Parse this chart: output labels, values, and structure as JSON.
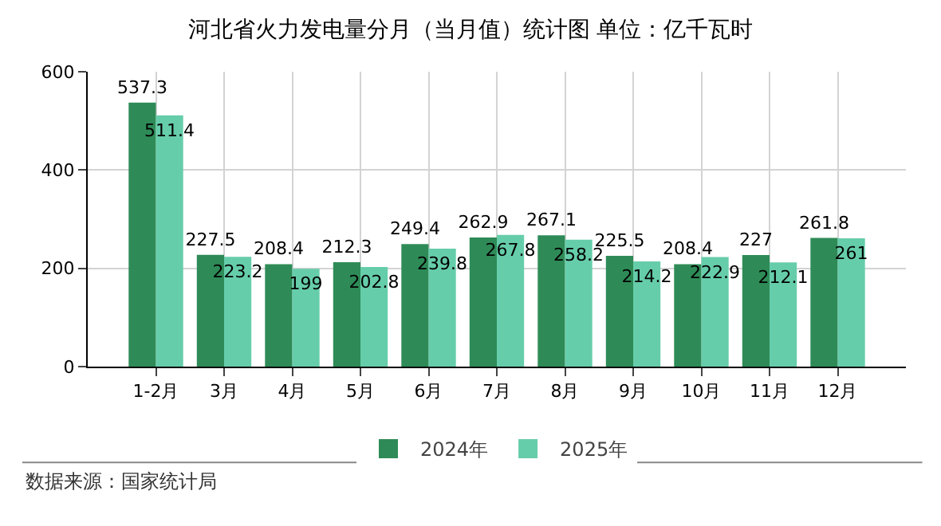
{
  "chart_data": {
    "type": "bar",
    "title": "河北省火力发电量分月（当月值）统计图 单位：亿千瓦时",
    "categories": [
      "1-2月",
      "3月",
      "4月",
      "5月",
      "6月",
      "7月",
      "8月",
      "9月",
      "10月",
      "11月",
      "12月"
    ],
    "series": [
      {
        "name": "2024年",
        "color": "#2e8b57",
        "values": [
          537.3,
          227.5,
          208.4,
          212.3,
          249.4,
          262.9,
          267.1,
          225.5,
          208.4,
          227,
          261.8
        ]
      },
      {
        "name": "2025年",
        "color": "#66cdaa",
        "values": [
          511.4,
          223.2,
          199,
          202.8,
          239.8,
          267.8,
          258.2,
          214.2,
          222.9,
          212.1,
          261
        ]
      }
    ],
    "ylim": [
      0,
      600
    ],
    "yticks": [
      0,
      200,
      400,
      600
    ],
    "grid": true,
    "legend": "bottom",
    "data_labels": true,
    "annotations": [
      "数据来源：国家统计局"
    ]
  }
}
